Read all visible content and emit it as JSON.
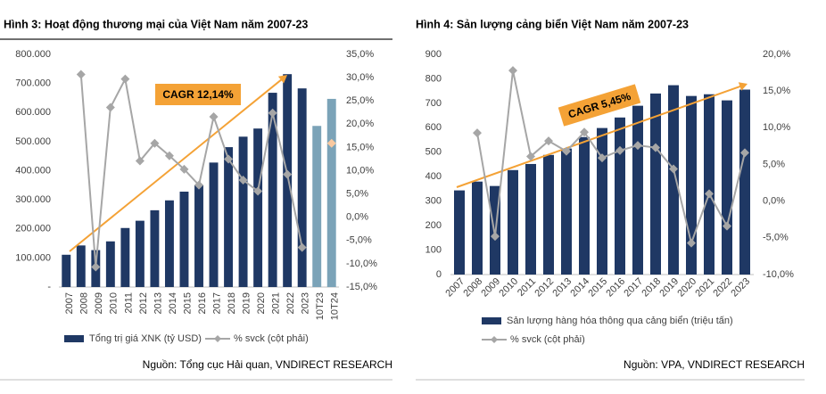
{
  "chart_data": [
    {
      "type": "bar_line",
      "title": "Hình 3: Hoạt động thương mại của Việt Nam năm 2007-23",
      "annotation": "CAGR 12,14%",
      "source": "Nguồn: Tổng cục Hải quan, VNDIRECT RESEARCH",
      "categories": [
        "2007",
        "2008",
        "2009",
        "2010",
        "2011",
        "2012",
        "2013",
        "2014",
        "2015",
        "2016",
        "2017",
        "2018",
        "2019",
        "2020",
        "2021",
        "2022",
        "2023",
        "10T23",
        "10T24"
      ],
      "series": [
        {
          "name": "Tổng trị giá XNK (tỷ USD)",
          "color": "#1f3864",
          "colors": [
            "#1f3864",
            "#1f3864",
            "#1f3864",
            "#1f3864",
            "#1f3864",
            "#1f3864",
            "#1f3864",
            "#1f3864",
            "#1f3864",
            "#1f3864",
            "#1f3864",
            "#1f3864",
            "#1f3864",
            "#1f3864",
            "#1f3864",
            "#1f3864",
            "#1f3864",
            "#7ba3b8",
            "#7ba3b8"
          ],
          "values": [
            111000,
            143000,
            127000,
            157000,
            203000,
            228000,
            264000,
            298000,
            328000,
            351000,
            428000,
            481000,
            517000,
            545000,
            668000,
            732000,
            683000,
            554000,
            647000
          ]
        },
        {
          "name": "% svck (cột phải)",
          "color": "#a6a6a6",
          "axis": "y2",
          "marker_colors": [
            "#a6a6a6",
            "#a6a6a6",
            "#a6a6a6",
            "#a6a6a6",
            "#a6a6a6",
            "#a6a6a6",
            "#a6a6a6",
            "#a6a6a6",
            "#a6a6a6",
            "#a6a6a6",
            "#a6a6a6",
            "#a6a6a6",
            "#a6a6a6",
            "#a6a6a6",
            "#a6a6a6",
            "#a6a6a6",
            "#a6a6a6",
            "#a6a6a6",
            "#f9c9a0"
          ],
          "values": [
            null,
            30.7,
            -10.7,
            23.6,
            29.7,
            12.1,
            15.9,
            13.2,
            10.3,
            6.9,
            21.6,
            12.5,
            8.0,
            5.6,
            22.4,
            9.2,
            -6.5,
            null,
            15.9
          ]
        }
      ],
      "ylim": [
        0,
        800000
      ],
      "yticks": [
        {
          "value": 0,
          "label": "-"
        },
        {
          "value": 100000,
          "label": "100.000"
        },
        {
          "value": 200000,
          "label": "200.000"
        },
        {
          "value": 300000,
          "label": "300.000"
        },
        {
          "value": 400000,
          "label": "400.000"
        },
        {
          "value": 500000,
          "label": "500.000"
        },
        {
          "value": 600000,
          "label": "600.000"
        },
        {
          "value": 700000,
          "label": "700.000"
        },
        {
          "value": 800000,
          "label": "800.000"
        }
      ],
      "y2lim": [
        -15,
        35
      ],
      "y2ticks": [
        {
          "value": -15,
          "label": "-15,0%"
        },
        {
          "value": -10,
          "label": "-10,0%"
        },
        {
          "value": -5,
          "label": "-5,0%"
        },
        {
          "value": 0,
          "label": "0,0%"
        },
        {
          "value": 5,
          "label": "5,0%"
        },
        {
          "value": 10,
          "label": "10,0%"
        },
        {
          "value": 15,
          "label": "15,0%"
        },
        {
          "value": 20,
          "label": "20,0%"
        },
        {
          "value": 25,
          "label": "25,0%"
        },
        {
          "value": 30,
          "label": "30,0%"
        },
        {
          "value": 35,
          "label": "35,0%"
        }
      ],
      "trend_color": "#f4a236"
    },
    {
      "type": "bar_line",
      "title": "Hình 4: Sản lượng cảng biển Việt Nam năm 2007-23",
      "annotation": "CAGR 5,45%",
      "source": "Nguồn: VPA, VNDIRECT RESEARCH",
      "categories": [
        "2007",
        "2008",
        "2009",
        "2010",
        "2011",
        "2012",
        "2013",
        "2014",
        "2015",
        "2016",
        "2017",
        "2018",
        "2019",
        "2020",
        "2021",
        "2022",
        "2023"
      ],
      "series": [
        {
          "name": "Sản lượng hàng hóa thông qua cảng biển (triệu tấn)",
          "color": "#1f3864",
          "values": [
            344,
            380,
            362,
            427,
            452,
            489,
            515,
            562,
            599,
            642,
            690,
            740,
            774,
            730,
            737,
            712,
            756
          ]
        },
        {
          "name": "% svck (cột phải)",
          "color": "#a6a6a6",
          "axis": "y2",
          "values": [
            null,
            9.3,
            -4.8,
            17.8,
            6.1,
            8.2,
            6.8,
            9.4,
            5.9,
            6.9,
            7.6,
            7.3,
            4.4,
            -5.7,
            1.0,
            -3.4,
            6.6
          ]
        }
      ],
      "ylim": [
        0,
        900
      ],
      "yticks": [
        0,
        100,
        200,
        300,
        400,
        500,
        600,
        700,
        800,
        900
      ],
      "y2lim": [
        -10,
        20
      ],
      "y2ticks": [
        {
          "value": -10,
          "label": "-10,0%"
        },
        {
          "value": -5,
          "label": "-5,0%"
        },
        {
          "value": 0,
          "label": "0,0%"
        },
        {
          "value": 5,
          "label": "5,0%"
        },
        {
          "value": 10,
          "label": "10,0%"
        },
        {
          "value": 15,
          "label": "15,0%"
        },
        {
          "value": 20,
          "label": "20,0%"
        }
      ],
      "trend_color": "#f4a236"
    }
  ]
}
